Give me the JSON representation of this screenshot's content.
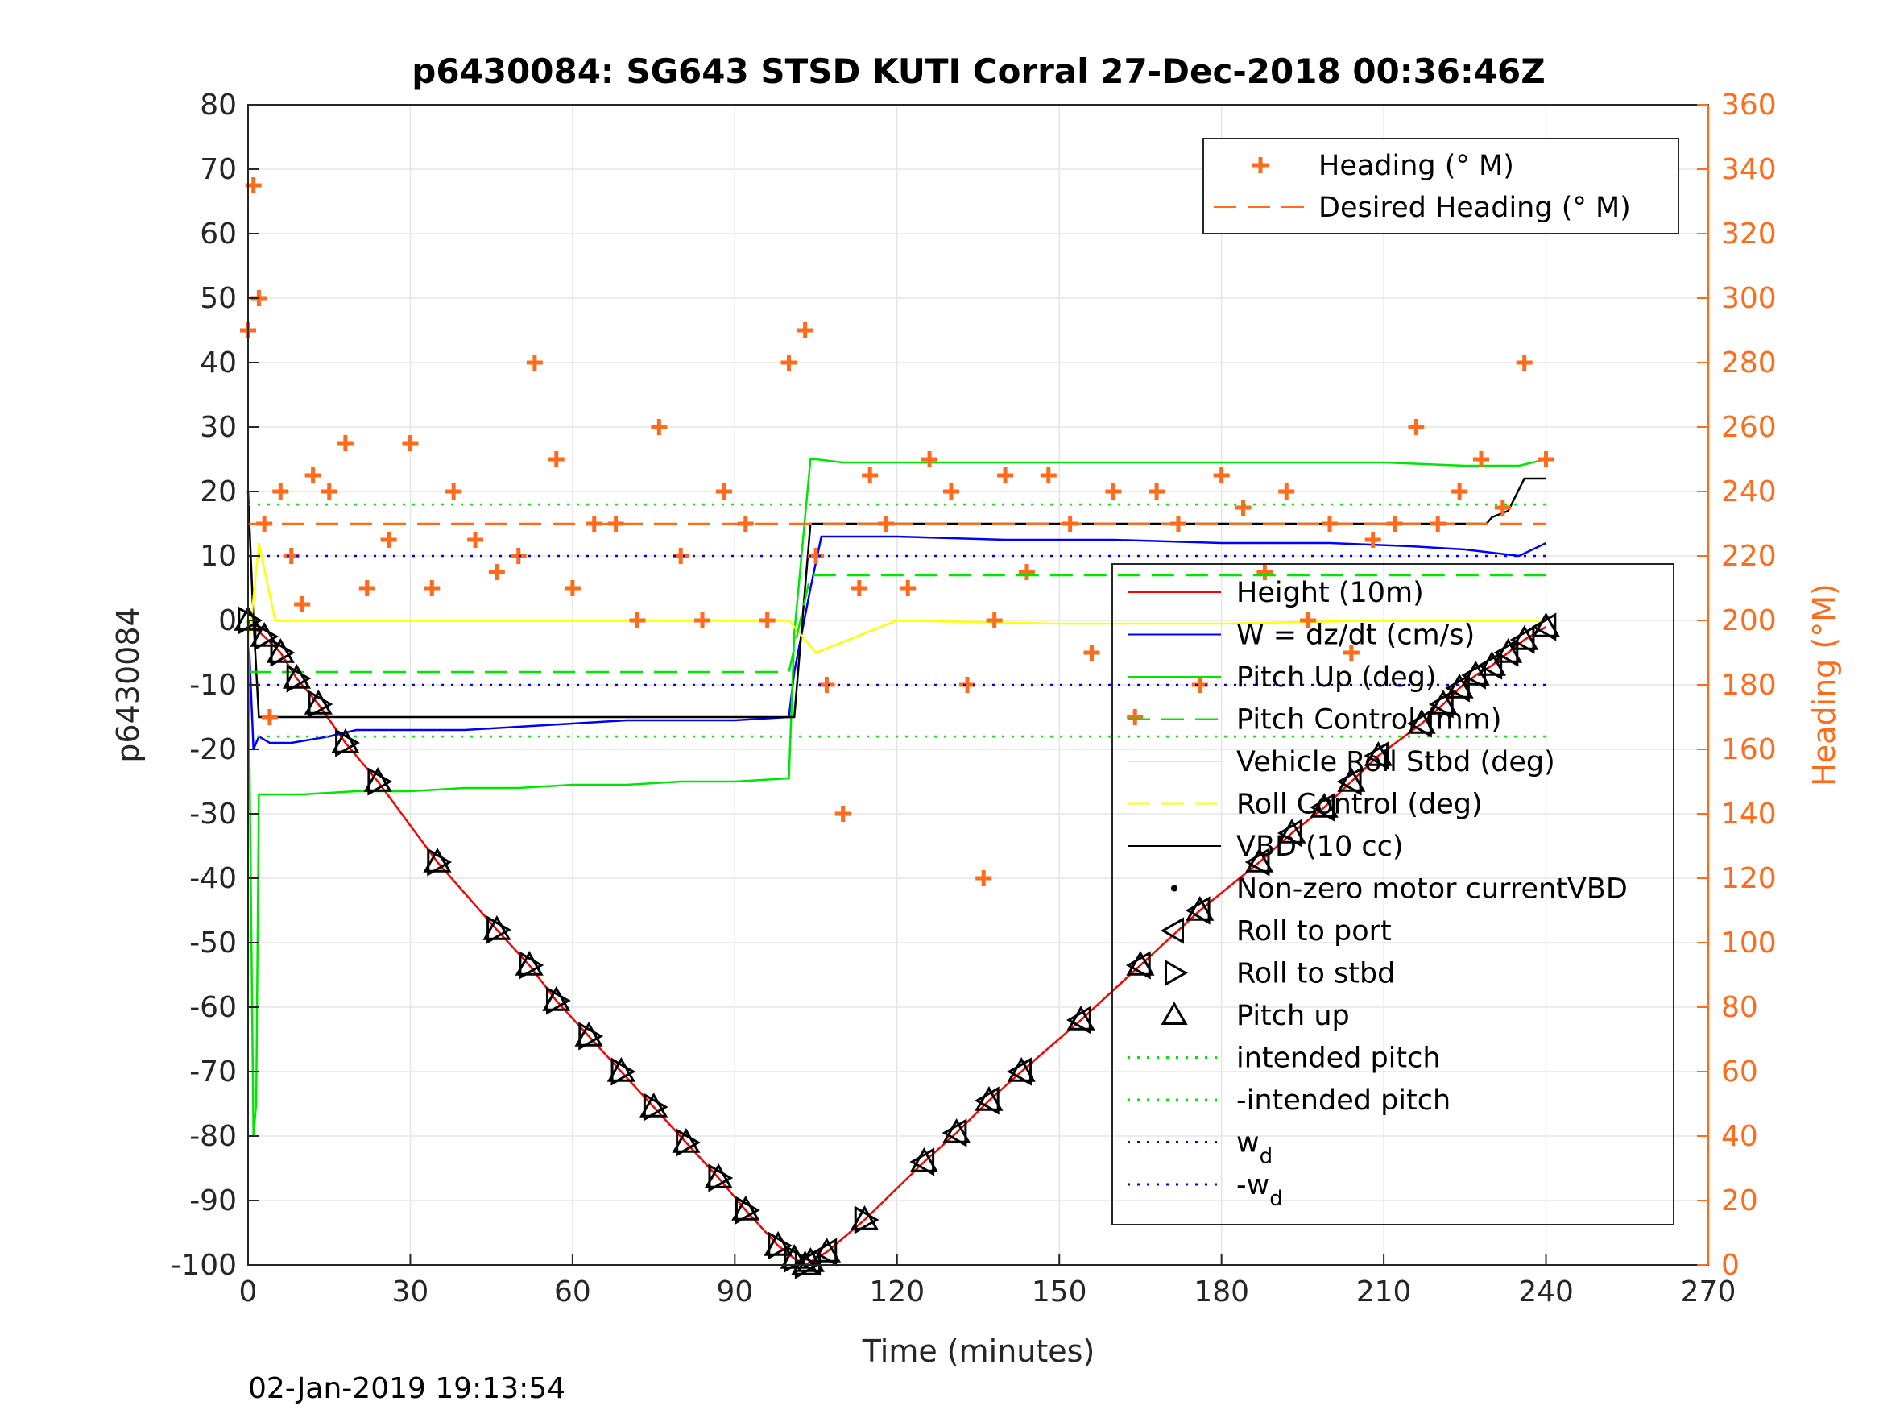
{
  "chart_data": {
    "type": "line",
    "title": "p6430084: SG643 STSD KUTI Corral 27-Dec-2018 00:36:46Z",
    "xlabel": "Time (minutes)",
    "ylabel": "p6430084",
    "ylabel_right": "Heading (°M)",
    "xlim": [
      0,
      270
    ],
    "ylim": [
      -100,
      80
    ],
    "ylim_right": [
      0,
      360
    ],
    "xticks": [
      "0",
      "30",
      "60",
      "90",
      "120",
      "150",
      "180",
      "210",
      "240",
      "270"
    ],
    "yticks": [
      "80",
      "70",
      "60",
      "50",
      "40",
      "30",
      "20",
      "10",
      "0",
      "-10",
      "-20",
      "-30",
      "-40",
      "-50",
      "-60",
      "-70",
      "-80",
      "-90",
      "-100"
    ],
    "yticks_right": [
      "360",
      "340",
      "320",
      "300",
      "280",
      "260",
      "240",
      "220",
      "200",
      "180",
      "160",
      "140",
      "120",
      "100",
      "80",
      "60",
      "40",
      "20",
      "0"
    ],
    "grid": true,
    "footer": "02-Jan-2019 19:13:54",
    "legend_top": [
      {
        "label": "Heading (° M)",
        "color": "#ff6b1a",
        "style": "plus"
      },
      {
        "label": "Desired Heading (° M)",
        "color": "#ff6b1a",
        "style": "dash"
      }
    ],
    "legend_main": [
      {
        "label": "Height (10m)",
        "color": "#ff0000",
        "style": "line"
      },
      {
        "label": "W = dz/dt (cm/s)",
        "color": "#0000ff",
        "style": "line"
      },
      {
        "label": "Pitch Up (deg)",
        "color": "#00e600",
        "style": "line"
      },
      {
        "label": "Pitch Control (mm)",
        "color": "#00e600",
        "style": "dash"
      },
      {
        "label": "Vehicle Roll Stbd (deg)",
        "color": "#ffff00",
        "style": "line"
      },
      {
        "label": "Roll Control (deg)",
        "color": "#ffff00",
        "style": "dash"
      },
      {
        "label": "VBD (10 cc)",
        "color": "#000000",
        "style": "line"
      },
      {
        "label": "Non-zero motor currentVBD",
        "color": "#000000",
        "style": "dot"
      },
      {
        "label": "Roll to port",
        "color": "#000000",
        "style": "tri-left"
      },
      {
        "label": "Roll to stbd",
        "color": "#000000",
        "style": "tri-right"
      },
      {
        "label": "Pitch up",
        "color": "#000000",
        "style": "tri-up"
      },
      {
        "label": "intended pitch",
        "color": "#00e600",
        "style": "dotted"
      },
      {
        "label": "-intended pitch",
        "color": "#00e600",
        "style": "dotted"
      },
      {
        "label": "w",
        "sub": "d",
        "color": "#0000ff",
        "style": "dotted"
      },
      {
        "label": "-w",
        "sub": "d",
        "color": "#0000ff",
        "style": "dotted"
      }
    ],
    "series": [
      {
        "name": "Height (10m)",
        "color": "#ff0000",
        "x": [
          0,
          1,
          3,
          6,
          9,
          13,
          18,
          24,
          35,
          46,
          52,
          57,
          63,
          69,
          75,
          81,
          87,
          92,
          98,
          101,
          103,
          104,
          107,
          114,
          125,
          131,
          137,
          143,
          154,
          165,
          176,
          187,
          193,
          199,
          204,
          209,
          217,
          221,
          224,
          227,
          230,
          233,
          236,
          240
        ],
        "y": [
          0,
          -1,
          -2.5,
          -5,
          -9,
          -13,
          -19,
          -25,
          -37.5,
          -48,
          -53.5,
          -59,
          -64.5,
          -70,
          -75.5,
          -81,
          -86.5,
          -91.5,
          -97,
          -99,
          -100,
          -99.5,
          -98,
          -93,
          -84,
          -79.5,
          -74.5,
          -70,
          -62,
          -53.5,
          -45,
          -37.5,
          -33,
          -29,
          -25,
          -21,
          -16,
          -13,
          -10.5,
          -8.5,
          -7,
          -5,
          -3,
          -1
        ]
      },
      {
        "name": "W = dz/dt (cm/s)",
        "color": "#0000ff",
        "x": [
          0,
          1,
          2,
          4,
          8,
          15,
          20,
          30,
          40,
          50,
          60,
          70,
          80,
          90,
          100,
          101,
          104,
          106,
          110,
          120,
          140,
          160,
          180,
          200,
          215,
          225,
          235,
          240
        ],
        "y": [
          0,
          -20,
          -18,
          -19,
          -19,
          -18,
          -17,
          -17,
          -17,
          -16.5,
          -16,
          -15.5,
          -15.5,
          -15.5,
          -15,
          -8,
          5,
          13,
          13,
          13,
          12.5,
          12.5,
          12,
          12,
          11.5,
          11,
          10,
          12
        ]
      },
      {
        "name": "Pitch Up (deg)",
        "color": "#00e600",
        "x": [
          0,
          1,
          1.5,
          2,
          3,
          10,
          20,
          30,
          40,
          50,
          60,
          70,
          80,
          90,
          100,
          101,
          104,
          105,
          110,
          130,
          150,
          170,
          190,
          210,
          225,
          235,
          240
        ],
        "y": [
          0,
          -80,
          -75,
          -27,
          -27,
          -27,
          -26.5,
          -26.5,
          -26,
          -26,
          -25.5,
          -25.5,
          -25,
          -25,
          -24.5,
          -2,
          25,
          25,
          24.5,
          24.5,
          24.5,
          24.5,
          24.5,
          24.5,
          24,
          24,
          25
        ]
      },
      {
        "name": "VBD (10 cc)",
        "color": "#000000",
        "x": [
          0,
          1,
          2,
          100,
          101,
          104,
          229,
          230,
          233,
          236,
          240
        ],
        "y": [
          20,
          0,
          -15,
          -15,
          -15,
          15,
          15,
          16,
          17,
          22,
          22
        ]
      },
      {
        "name": "Vehicle Roll Stbd (deg)",
        "color": "#ffff00",
        "x": [
          0,
          2,
          5,
          10,
          30,
          60,
          90,
          100,
          105,
          120,
          150,
          180,
          210,
          240
        ],
        "y": [
          -5,
          12,
          0,
          0,
          0,
          0,
          0,
          0,
          -5,
          0,
          -0.5,
          -0.5,
          0,
          0
        ]
      },
      {
        "name": "Heading (° M)",
        "color": "#ff6b1a",
        "axis": "right",
        "x": [
          0,
          1,
          2,
          3,
          4,
          6,
          8,
          10,
          12,
          15,
          18,
          22,
          26,
          30,
          34,
          38,
          42,
          46,
          50,
          53,
          57,
          60,
          64,
          68,
          72,
          76,
          80,
          84,
          88,
          92,
          96,
          100,
          103,
          105,
          107,
          110,
          113,
          115,
          118,
          122,
          126,
          130,
          133,
          136,
          138,
          140,
          144,
          148,
          152,
          156,
          160,
          164,
          168,
          172,
          176,
          180,
          184,
          188,
          192,
          196,
          200,
          204,
          208,
          212,
          216,
          220,
          224,
          228,
          232,
          236,
          240
        ],
        "y": [
          290,
          335,
          300,
          230,
          170,
          240,
          220,
          205,
          245,
          240,
          255,
          210,
          225,
          255,
          210,
          240,
          225,
          215,
          220,
          280,
          250,
          210,
          230,
          230,
          200,
          260,
          220,
          200,
          240,
          230,
          200,
          280,
          290,
          220,
          180,
          140,
          210,
          245,
          230,
          210,
          250,
          240,
          180,
          120,
          200,
          245,
          215,
          245,
          230,
          190,
          240,
          170,
          240,
          230,
          180,
          245,
          235,
          215,
          240,
          200,
          230,
          190,
          225,
          230,
          260,
          230,
          240,
          250,
          235,
          280,
          250
        ]
      },
      {
        "name": "Desired Heading (° M)",
        "color": "#ff6b1a",
        "axis": "right",
        "x": [
          0,
          240
        ],
        "y": [
          230,
          230
        ]
      },
      {
        "name": "intended pitch",
        "color": "#00e600",
        "x": [
          0,
          240
        ],
        "y": [
          18,
          18
        ]
      },
      {
        "name": "-intended pitch",
        "color": "#00e600",
        "x": [
          0,
          240
        ],
        "y": [
          -18,
          -18
        ]
      },
      {
        "name": "w_d",
        "color": "#0000ff",
        "x": [
          0,
          240
        ],
        "y": [
          10,
          10
        ]
      },
      {
        "name": "-w_d",
        "color": "#0000ff",
        "x": [
          0,
          240
        ],
        "y": [
          -10,
          -10
        ]
      },
      {
        "name": "Pitch Control (mm)",
        "color": "#00e600",
        "x": [
          0,
          100,
          104,
          240
        ],
        "y": [
          -8,
          -8,
          7,
          7
        ]
      },
      {
        "name": "Roll to port",
        "marker": "tri-left",
        "x": [
          104,
          107,
          125,
          131,
          137,
          143,
          154,
          165,
          176,
          187,
          193,
          199,
          204,
          209,
          217,
          221,
          224,
          227,
          230,
          233,
          236,
          240
        ],
        "y": [
          -99.5,
          -98,
          -84,
          -79.5,
          -74.5,
          -70,
          -62,
          -53.5,
          -45,
          -37.5,
          -33,
          -29,
          -25,
          -21,
          -16,
          -13,
          -10.5,
          -8.5,
          -7,
          -5,
          -3,
          -1
        ]
      },
      {
        "name": "Roll to stbd",
        "marker": "tri-right",
        "x": [
          0,
          3,
          6,
          9,
          13,
          18,
          24,
          35,
          46,
          52,
          57,
          63,
          69,
          75,
          81,
          87,
          92,
          98,
          101,
          103,
          114
        ],
        "y": [
          0,
          -2.5,
          -5,
          -9,
          -13,
          -19,
          -25,
          -37.5,
          -48,
          -53.5,
          -59,
          -64.5,
          -70,
          -75.5,
          -81,
          -86.5,
          -91.5,
          -97,
          -99,
          -100,
          -93
        ]
      },
      {
        "name": "Pitch up",
        "marker": "tri-up",
        "x": [
          0,
          3,
          6,
          9,
          13,
          18,
          24,
          35,
          46,
          52,
          57,
          63,
          69,
          75,
          81,
          87,
          92,
          98,
          101,
          103,
          104,
          107,
          114,
          125,
          131,
          137,
          143,
          154,
          165,
          176,
          187,
          193,
          199,
          204,
          209,
          217,
          221,
          224,
          227,
          230,
          233,
          236,
          240
        ],
        "y": [
          0,
          -2.5,
          -5,
          -9,
          -13,
          -19,
          -25,
          -37.5,
          -48,
          -53.5,
          -59,
          -64.5,
          -70,
          -75.5,
          -81,
          -86.5,
          -91.5,
          -97,
          -99,
          -100,
          -99.5,
          -98,
          -93,
          -84,
          -79.5,
          -74.5,
          -70,
          -62,
          -53.5,
          -45,
          -37.5,
          -33,
          -29,
          -25,
          -21,
          -16,
          -13,
          -10.5,
          -8.5,
          -7,
          -5,
          -3,
          -1
        ]
      }
    ]
  }
}
